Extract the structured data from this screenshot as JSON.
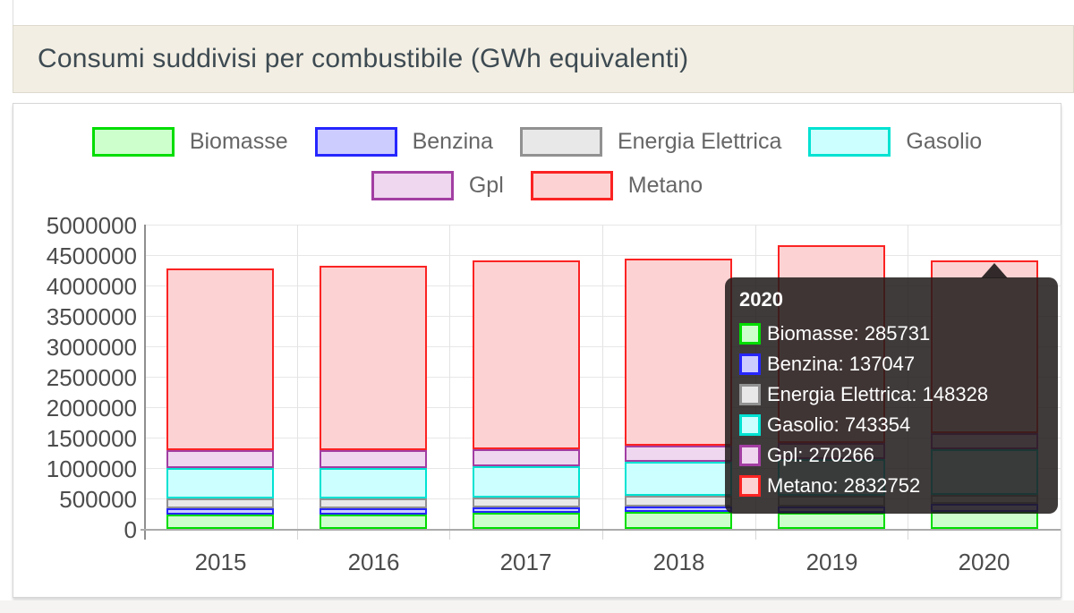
{
  "header": {
    "title": "Consumi suddivisi per combustibile (GWh equivalenti)"
  },
  "chart_data": {
    "type": "bar",
    "stacked": true,
    "title": "Consumi suddivisi per combustibile (GWh equivalenti)",
    "categories": [
      "2015",
      "2016",
      "2017",
      "2018",
      "2019",
      "2020"
    ],
    "series": [
      {
        "name": "Biomasse",
        "fill": "#ccffcc",
        "border": "#00dd00",
        "values": [
          230000,
          230000,
          265000,
          280000,
          265000,
          285731
        ]
      },
      {
        "name": "Benzina",
        "fill": "#ccccff",
        "border": "#2626ff",
        "values": [
          110000,
          105000,
          95000,
          90000,
          105000,
          137047
        ]
      },
      {
        "name": "Energia Elettrica",
        "fill": "#e8e8e8",
        "border": "#919191",
        "values": [
          160000,
          160000,
          165000,
          180000,
          170000,
          148328
        ]
      },
      {
        "name": "Gasolio",
        "fill": "#ccffff",
        "border": "#00e2d2",
        "values": [
          505000,
          495000,
          515000,
          555000,
          600000,
          743354
        ]
      },
      {
        "name": "Gpl",
        "fill": "#efd7ef",
        "border": "#a23ea2",
        "values": [
          290000,
          295000,
          285000,
          260000,
          270000,
          270266
        ]
      },
      {
        "name": "Metano",
        "fill": "#fdd2d2",
        "border": "#fb2323",
        "values": [
          2990000,
          3030000,
          3110000,
          3080000,
          3245000,
          2832752
        ]
      }
    ],
    "xlabel": "",
    "ylabel": "",
    "ylim": [
      0,
      5000000
    ],
    "y_tick_step": 500000,
    "y_ticks": [
      "5000000",
      "4500000",
      "4000000",
      "3500000",
      "3000000",
      "2500000",
      "2000000",
      "1500000",
      "1000000",
      "500000",
      "0"
    ],
    "grid": true,
    "legend_position": "top",
    "legend_rows": [
      [
        "Biomasse",
        "Benzina",
        "Energia Elettrica",
        "Gasolio"
      ],
      [
        "Gpl",
        "Metano"
      ]
    ]
  },
  "tooltip": {
    "title": "2020",
    "items": [
      {
        "label": "Biomasse",
        "value": "285731"
      },
      {
        "label": "Benzina",
        "value": "137047"
      },
      {
        "label": "Energia Elettrica",
        "value": "148328"
      },
      {
        "label": "Gasolio",
        "value": "743354"
      },
      {
        "label": "Gpl",
        "value": "270266"
      },
      {
        "label": "Metano",
        "value": "2832752"
      }
    ]
  }
}
